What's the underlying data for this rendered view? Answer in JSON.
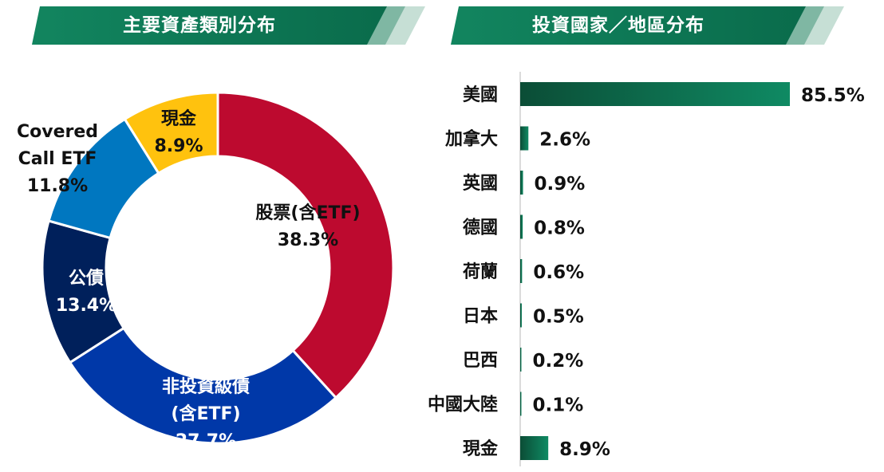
{
  "headers": {
    "left": "主要資產類別分布",
    "right": "投資國家／地區分布"
  },
  "colors": {
    "header_green": "#0b7a57",
    "header_stripe_1": "#7fb7a3",
    "header_stripe_2": "#c6dfd5",
    "bar_dark": "#0b4d36",
    "bar_light": "#0f8a63"
  },
  "chart_data": [
    {
      "type": "pie",
      "title": "主要資產類別分布",
      "slices": [
        {
          "label": [
            "股票(含ETF)"
          ],
          "value_label": "38.3%",
          "value": 38.3,
          "color": "#bd0a2f",
          "text_color": "#111111"
        },
        {
          "label": [
            "非投資級債",
            "(含ETF)"
          ],
          "value_label": "27.7%",
          "value": 27.7,
          "color": "#0038a8",
          "text_color": "#ffffff"
        },
        {
          "label": [
            "公債"
          ],
          "value_label": "13.4%",
          "value": 13.4,
          "color": "#00205b",
          "text_color": "#ffffff"
        },
        {
          "label": [
            "Covered",
            "Call ETF"
          ],
          "value_label": "11.8%",
          "value": 11.8,
          "color": "#0077c0",
          "text_color": "#111111"
        },
        {
          "label": [
            "現金"
          ],
          "value_label": "8.9%",
          "value": 8.9,
          "color": "#ffc20e",
          "text_color": "#111111"
        }
      ]
    },
    {
      "type": "bar",
      "orientation": "horizontal",
      "title": "投資國家／地區分布",
      "categories": [
        "美國",
        "加拿大",
        "英國",
        "德國",
        "荷蘭",
        "日本",
        "巴西",
        "中國大陸",
        "現金"
      ],
      "values": [
        85.5,
        2.6,
        0.9,
        0.8,
        0.6,
        0.5,
        0.2,
        0.1,
        8.9
      ],
      "value_labels": [
        "85.5%",
        "2.6%",
        "0.9%",
        "0.8%",
        "0.6%",
        "0.5%",
        "0.2%",
        "0.1%",
        "8.9%"
      ],
      "xlim": [
        0,
        85.5
      ]
    }
  ]
}
